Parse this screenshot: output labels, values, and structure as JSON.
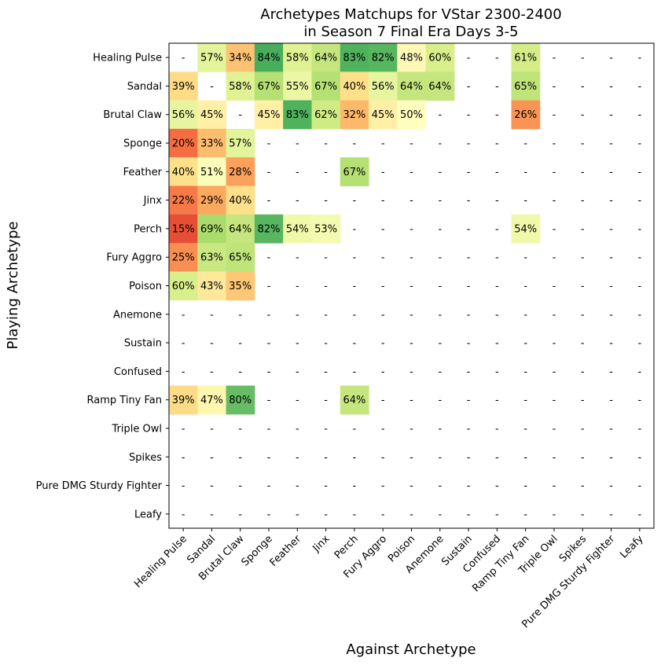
{
  "chart_data": {
    "type": "heatmap",
    "title_lines": [
      "Archetypes Matchups for VStar 2300-2400",
      "in Season 7 Final Era Days 3-5"
    ],
    "xlabel": "Against Archetype",
    "ylabel": "Playing Archetype",
    "row_labels": [
      "Healing Pulse",
      "Sandal",
      "Brutal Claw",
      "Sponge",
      "Feather",
      "Jinx",
      "Perch",
      "Fury Aggro",
      "Poison",
      "Anemone",
      "Sustain",
      "Confused",
      "Ramp Tiny Fan",
      "Triple Owl",
      "Spikes",
      "Pure DMG Sturdy Fighter",
      "Leafy"
    ],
    "col_labels": [
      "Healing Pulse",
      "Sandal",
      "Brutal Claw",
      "Sponge",
      "Feather",
      "Jinx",
      "Perch",
      "Fury Aggro",
      "Poison",
      "Anemone",
      "Sustain",
      "Confused",
      "Ramp Tiny Fan",
      "Triple Owl",
      "Spikes",
      "Pure DMG Sturdy Fighter",
      "Leafy"
    ],
    "cells": [
      [
        "-",
        "57%",
        "34%",
        "84%",
        "58%",
        "64%",
        "83%",
        "82%",
        "48%",
        "60%",
        "-",
        "-",
        "61%",
        "-",
        "-",
        "-",
        "-"
      ],
      [
        "39%",
        "-",
        "58%",
        "67%",
        "55%",
        "67%",
        "40%",
        "56%",
        "64%",
        "64%",
        "-",
        "-",
        "65%",
        "-",
        "-",
        "-",
        "-"
      ],
      [
        "56%",
        "45%",
        "-",
        "45%",
        "83%",
        "62%",
        "32%",
        "45%",
        "50%",
        "-",
        "-",
        "-",
        "26%",
        "-",
        "-",
        "-",
        "-"
      ],
      [
        "20%",
        "33%",
        "57%",
        "-",
        "-",
        "-",
        "-",
        "-",
        "-",
        "-",
        "-",
        "-",
        "-",
        "-",
        "-",
        "-",
        "-"
      ],
      [
        "40%",
        "51%",
        "28%",
        "-",
        "-",
        "-",
        "67%",
        "-",
        "-",
        "-",
        "-",
        "-",
        "-",
        "-",
        "-",
        "-",
        "-"
      ],
      [
        "22%",
        "29%",
        "40%",
        "-",
        "-",
        "-",
        "-",
        "-",
        "-",
        "-",
        "-",
        "-",
        "-",
        "-",
        "-",
        "-",
        "-"
      ],
      [
        "15%",
        "69%",
        "64%",
        "82%",
        "54%",
        "53%",
        "-",
        "-",
        "-",
        "-",
        "-",
        "-",
        "54%",
        "-",
        "-",
        "-",
        "-"
      ],
      [
        "25%",
        "63%",
        "65%",
        "-",
        "-",
        "-",
        "-",
        "-",
        "-",
        "-",
        "-",
        "-",
        "-",
        "-",
        "-",
        "-",
        "-"
      ],
      [
        "60%",
        "43%",
        "35%",
        "-",
        "-",
        "-",
        "-",
        "-",
        "-",
        "-",
        "-",
        "-",
        "-",
        "-",
        "-",
        "-",
        "-"
      ],
      [
        "-",
        "-",
        "-",
        "-",
        "-",
        "-",
        "-",
        "-",
        "-",
        "-",
        "-",
        "-",
        "-",
        "-",
        "-",
        "-",
        "-"
      ],
      [
        "-",
        "-",
        "-",
        "-",
        "-",
        "-",
        "-",
        "-",
        "-",
        "-",
        "-",
        "-",
        "-",
        "-",
        "-",
        "-",
        "-"
      ],
      [
        "-",
        "-",
        "-",
        "-",
        "-",
        "-",
        "-",
        "-",
        "-",
        "-",
        "-",
        "-",
        "-",
        "-",
        "-",
        "-",
        "-"
      ],
      [
        "39%",
        "47%",
        "80%",
        "-",
        "-",
        "-",
        "64%",
        "-",
        "-",
        "-",
        "-",
        "-",
        "-",
        "-",
        "-",
        "-",
        "-"
      ],
      [
        "-",
        "-",
        "-",
        "-",
        "-",
        "-",
        "-",
        "-",
        "-",
        "-",
        "-",
        "-",
        "-",
        "-",
        "-",
        "-",
        "-"
      ],
      [
        "-",
        "-",
        "-",
        "-",
        "-",
        "-",
        "-",
        "-",
        "-",
        "-",
        "-",
        "-",
        "-",
        "-",
        "-",
        "-",
        "-"
      ],
      [
        "-",
        "-",
        "-",
        "-",
        "-",
        "-",
        "-",
        "-",
        "-",
        "-",
        "-",
        "-",
        "-",
        "-",
        "-",
        "-",
        "-"
      ],
      [
        "-",
        "-",
        "-",
        "-",
        "-",
        "-",
        "-",
        "-",
        "-",
        "-",
        "-",
        "-",
        "-",
        "-",
        "-",
        "-",
        "-"
      ]
    ],
    "colormap": "RdYlGn",
    "value_range": [
      0,
      100
    ],
    "grid": false
  }
}
